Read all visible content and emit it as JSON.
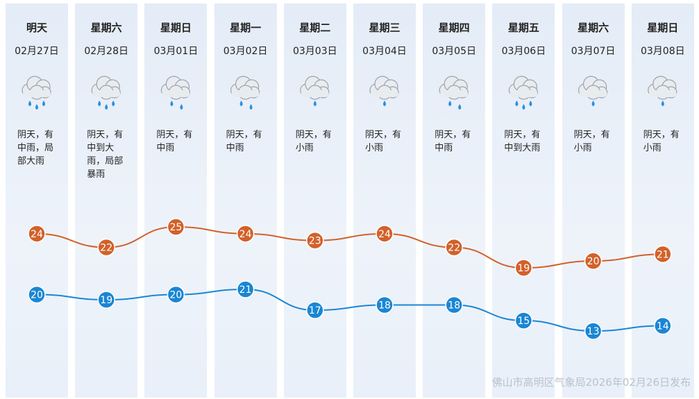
{
  "chart_data": {
    "type": "line",
    "categories": [
      "明天",
      "星期六",
      "星期日",
      "星期一",
      "星期二",
      "星期三",
      "星期四",
      "星期五",
      "星期六",
      "星期日"
    ],
    "dates": [
      "02月27日",
      "02月28日",
      "03月01日",
      "03月02日",
      "03月03日",
      "03月04日",
      "03月05日",
      "03月06日",
      "03月07日",
      "03月08日"
    ],
    "weather": [
      "阴天，有中雨，局部大雨",
      "阴天，有中到大雨，局部暴雨",
      "阴天，有中雨",
      "阴天，有中雨",
      "阴天，有小雨",
      "阴天，有小雨",
      "阴天，有中雨",
      "阴天，有中到大雨",
      "阴天，有小雨",
      "阴天，有小雨"
    ],
    "series": [
      {
        "color": "#d2612a",
        "values": [
          24,
          22,
          25,
          24,
          23,
          24,
          22,
          19,
          20,
          21
        ]
      },
      {
        "color": "#1a86d4",
        "values": [
          20,
          19,
          20,
          21,
          17,
          18,
          18,
          15,
          13,
          14
        ]
      }
    ],
    "footer": "佛山市高明区气象局2026年02月26日发布"
  }
}
